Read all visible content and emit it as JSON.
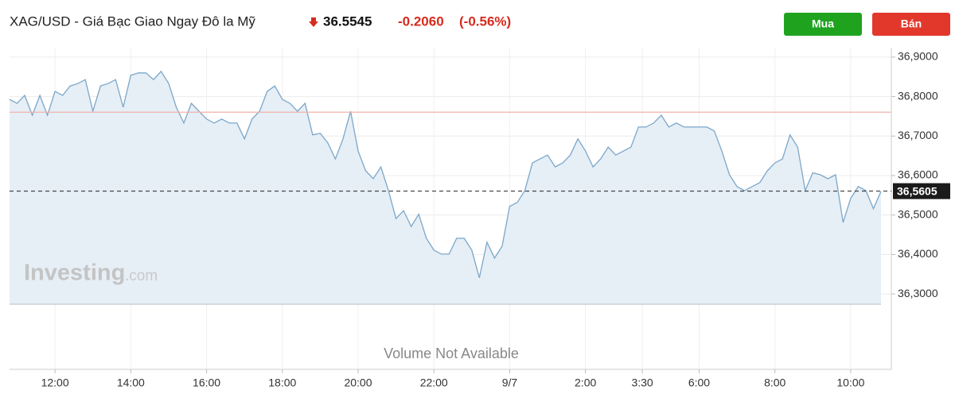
{
  "header": {
    "title": "XAG/USD - Giá Bạc Giao Ngay Đô la Mỹ",
    "price": "36.5545",
    "change": "-0.2060",
    "change_pct": "(-0.56%)"
  },
  "buttons": [
    "Mua",
    "Bán"
  ],
  "watermark": {
    "brand": "Investing",
    "suffix": ".com"
  },
  "volume_note": "Volume Not Available",
  "chart_data": {
    "type": "area",
    "color": "#7ba7c9",
    "fill": "#e6eef6",
    "x": [
      0,
      1,
      2,
      3,
      4,
      5,
      6,
      7,
      8,
      9,
      10,
      11,
      12,
      13,
      14,
      15,
      16,
      17,
      18,
      19,
      20,
      21,
      22,
      23,
      24,
      25,
      26,
      27,
      28,
      29,
      30,
      31,
      32,
      33,
      34,
      35,
      36,
      37,
      38,
      39,
      40,
      41,
      42,
      43,
      44,
      45,
      46,
      47,
      48,
      49,
      50,
      51,
      52,
      53,
      54,
      55,
      56,
      57,
      58,
      59,
      60,
      61,
      62,
      63,
      64,
      65,
      66,
      67,
      68,
      69,
      70,
      71,
      72,
      73,
      74,
      75,
      76,
      77,
      78,
      79,
      80,
      81,
      82,
      83,
      84,
      85,
      86,
      87,
      88,
      89,
      90,
      91,
      92,
      93,
      94,
      95,
      96,
      97,
      98,
      99,
      100,
      101,
      102,
      103,
      104,
      105,
      106,
      107,
      108,
      109,
      110,
      111,
      112,
      113,
      114,
      115
    ],
    "values": [
      36.793,
      36.783,
      36.803,
      36.753,
      36.803,
      36.753,
      36.813,
      36.803,
      36.827,
      36.833,
      36.843,
      36.763,
      36.827,
      36.833,
      36.843,
      36.773,
      36.854,
      36.86,
      36.86,
      36.843,
      36.864,
      36.833,
      36.773,
      36.733,
      36.783,
      36.763,
      36.743,
      36.733,
      36.743,
      36.733,
      36.733,
      36.693,
      36.743,
      36.763,
      36.813,
      36.827,
      36.793,
      36.783,
      36.763,
      36.783,
      36.703,
      36.707,
      36.683,
      36.642,
      36.693,
      36.763,
      36.662,
      36.612,
      36.592,
      36.622,
      36.562,
      36.491,
      36.511,
      36.471,
      36.502,
      36.441,
      36.411,
      36.401,
      36.401,
      36.441,
      36.441,
      36.411,
      36.341,
      36.431,
      36.391,
      36.421,
      36.522,
      36.532,
      36.562,
      36.632,
      36.642,
      36.652,
      36.622,
      36.632,
      36.652,
      36.693,
      36.662,
      36.622,
      36.642,
      36.672,
      36.652,
      36.662,
      36.672,
      36.723,
      36.723,
      36.733,
      36.753,
      36.723,
      36.733,
      36.723,
      36.723,
      36.723,
      36.723,
      36.713,
      36.662,
      36.602,
      36.572,
      36.562,
      36.572,
      36.582,
      36.612,
      36.632,
      36.642,
      36.703,
      36.672,
      36.562,
      36.607,
      36.602,
      36.592,
      36.602,
      36.481,
      36.542,
      36.572,
      36.562,
      36.516,
      36.56
    ],
    "xlim": [
      0,
      115
    ],
    "xticks": [
      {
        "value": 6,
        "label": "12:00"
      },
      {
        "value": 16,
        "label": "14:00"
      },
      {
        "value": 26,
        "label": "16:00"
      },
      {
        "value": 36,
        "label": "18:00"
      },
      {
        "value": 46,
        "label": "20:00"
      },
      {
        "value": 56,
        "label": "22:00"
      },
      {
        "value": 66,
        "label": "9/7"
      },
      {
        "value": 76,
        "label": "2:00"
      },
      {
        "value": 83.5,
        "label": "3:30"
      },
      {
        "value": 91,
        "label": "6:00"
      },
      {
        "value": 101,
        "label": "8:00"
      },
      {
        "value": 111,
        "label": "10:00"
      }
    ],
    "ylim": [
      36.27,
      36.93
    ],
    "yticks": [
      {
        "value": 36.3,
        "label": "36,3000"
      },
      {
        "value": 36.4,
        "label": "36,4000"
      },
      {
        "value": 36.5,
        "label": "36,5000"
      },
      {
        "value": 36.6,
        "label": "36,6000"
      },
      {
        "value": 36.7,
        "label": "36,7000"
      },
      {
        "value": 36.8,
        "label": "36,8000"
      },
      {
        "value": 36.9,
        "label": "36,9000"
      }
    ],
    "grid": true,
    "current_price": {
      "value": 36.5605,
      "label": "36,5605"
    },
    "prev_close": 36.7605
  }
}
